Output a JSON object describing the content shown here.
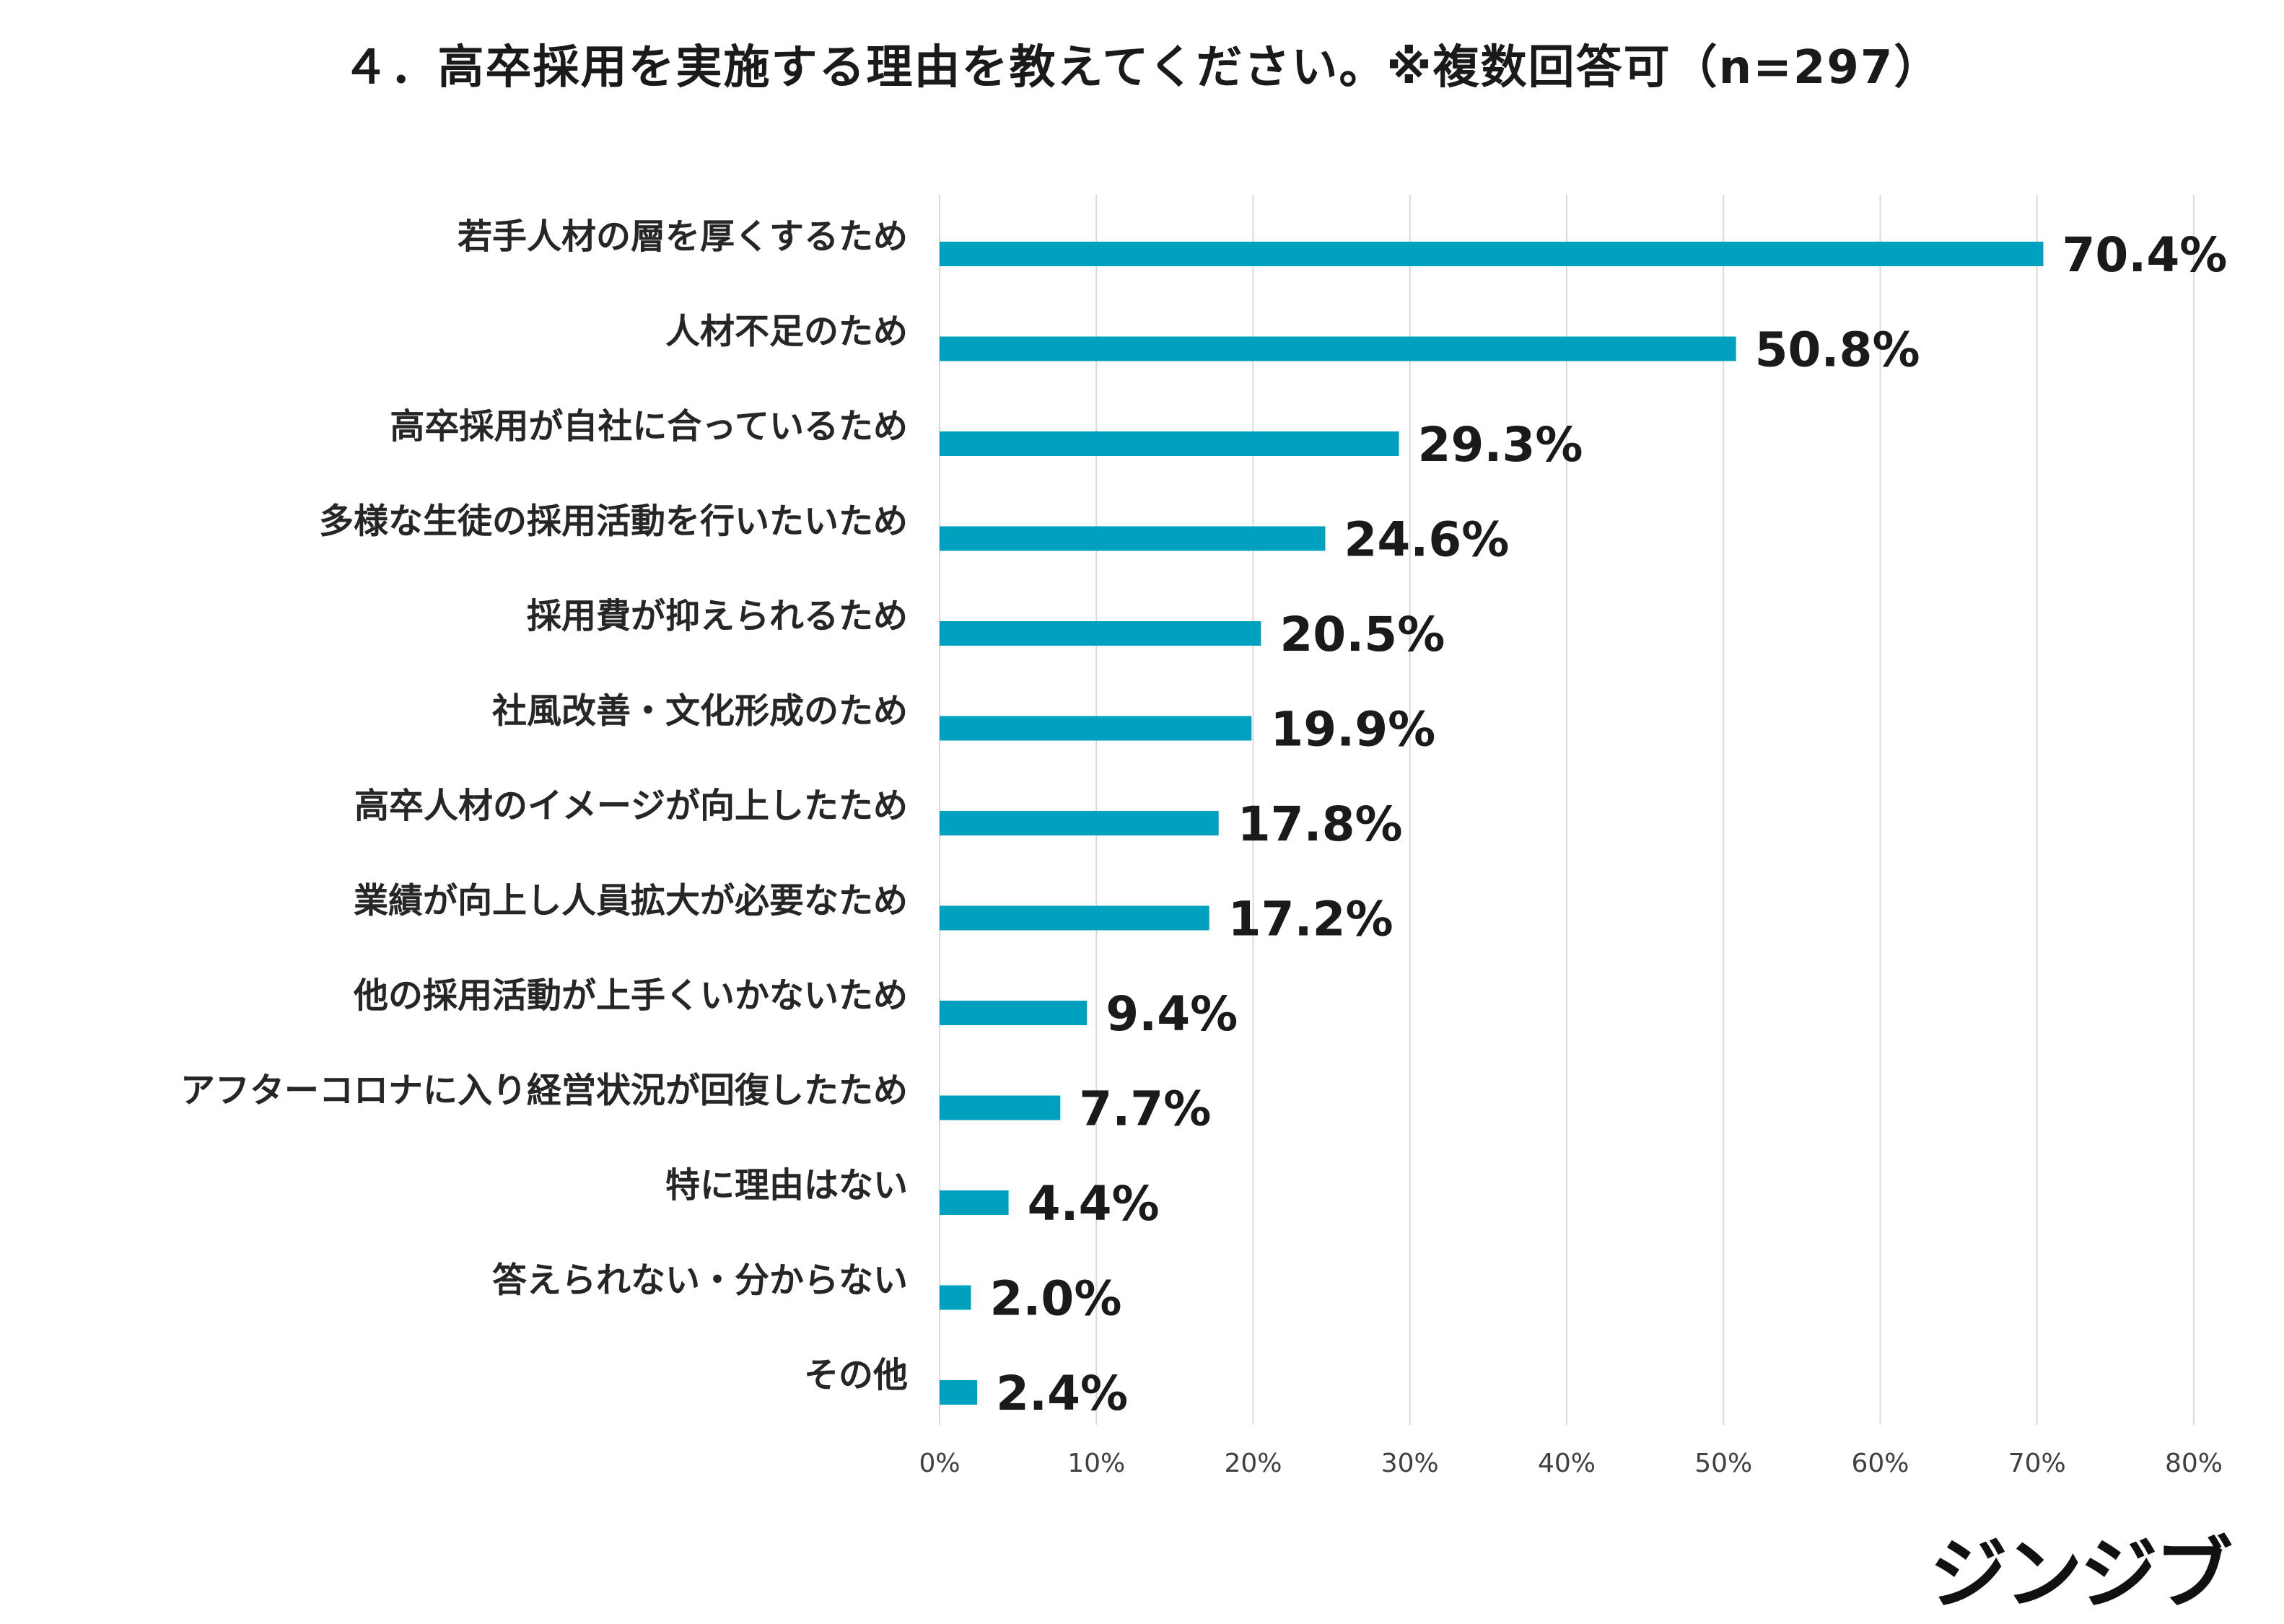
{
  "title": "４．高卒採用を実施する理由を教えてください。※複数回答可（n=297）",
  "logo": "ジンジブ",
  "chart_data": {
    "type": "bar",
    "orientation": "horizontal",
    "title": "４．高卒採用を実施する理由を教えてください。※複数回答可（n=297）",
    "categories": [
      "若手人材の層を厚くするため",
      "人材不足のため",
      "高卒採用が自社に合っているため",
      "多様な生徒の採用活動を行いたいため",
      "採用費が抑えられるため",
      "社風改善・文化形成のため",
      "高卒人材のイメージが向上したため",
      "業績が向上し人員拡大が必要なため",
      "他の採用活動が上手くいかないため",
      "アフターコロナに入り経営状況が回復したため",
      "特に理由はない",
      "答えられない・分からない",
      "その他"
    ],
    "values": [
      70.4,
      50.8,
      29.3,
      24.6,
      20.5,
      19.9,
      17.8,
      17.2,
      9.4,
      7.7,
      4.4,
      2.0,
      2.4
    ],
    "value_labels": [
      "70.4%",
      "50.8%",
      "29.3%",
      "24.6%",
      "20.5%",
      "19.9%",
      "17.8%",
      "17.2%",
      "9.4%",
      "7.7%",
      "4.4%",
      "2.0%",
      "2.4%"
    ],
    "xlim": [
      0,
      80
    ],
    "xticks": [
      0,
      10,
      20,
      30,
      40,
      50,
      60,
      70,
      80
    ],
    "xtick_labels": [
      "0%",
      "10%",
      "20%",
      "30%",
      "40%",
      "50%",
      "60%",
      "70%",
      "80%"
    ],
    "grid": "vertical",
    "bar_color": "#00a0bf",
    "grid_color": "#d9d9d9",
    "legend": "none"
  }
}
